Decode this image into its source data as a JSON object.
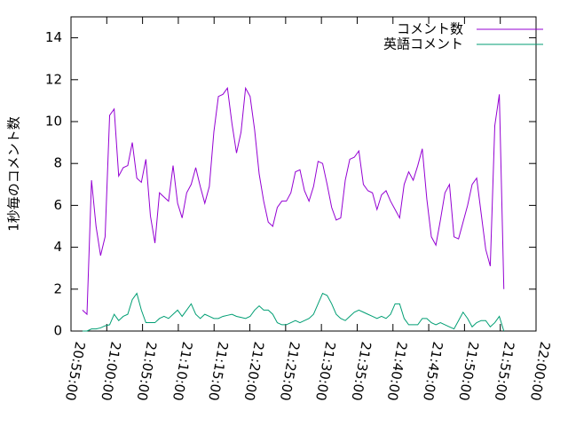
{
  "chart_data": {
    "type": "line",
    "y_label": "1秒毎のコメント数",
    "x": [
      "20:56:36",
      "20:57:14",
      "20:57:52",
      "20:58:30",
      "20:59:08",
      "20:59:46",
      "21:00:24",
      "21:01:02",
      "21:01:40",
      "21:02:18",
      "21:02:56",
      "21:03:34",
      "21:04:12",
      "21:04:50",
      "21:05:28",
      "21:06:06",
      "21:06:44",
      "21:07:22",
      "21:08:00",
      "21:08:38",
      "21:09:16",
      "21:09:54",
      "21:10:32",
      "21:11:10",
      "21:11:48",
      "21:12:26",
      "21:13:04",
      "21:13:42",
      "21:14:20",
      "21:14:58",
      "21:15:36",
      "21:16:14",
      "21:16:52",
      "21:17:30",
      "21:18:08",
      "21:18:46",
      "21:19:24",
      "21:20:02",
      "21:20:40",
      "21:21:18",
      "21:21:56",
      "21:22:34",
      "21:23:12",
      "21:23:50",
      "21:24:28",
      "21:25:06",
      "21:25:44",
      "21:26:22",
      "21:27:00",
      "21:27:38",
      "21:28:16",
      "21:28:54",
      "21:29:32",
      "21:30:10",
      "21:30:48",
      "21:31:26",
      "21:32:04",
      "21:32:42",
      "21:33:20",
      "21:33:58",
      "21:34:36",
      "21:35:14",
      "21:35:52",
      "21:36:30",
      "21:37:08",
      "21:37:46",
      "21:38:24",
      "21:39:02",
      "21:39:40",
      "21:40:18",
      "21:40:56",
      "21:41:34",
      "21:42:12",
      "21:42:50",
      "21:43:28",
      "21:44:06",
      "21:44:44",
      "21:45:22",
      "21:46:00",
      "21:46:38",
      "21:47:16",
      "21:47:54",
      "21:48:32",
      "21:49:10",
      "21:49:48",
      "21:50:26",
      "21:51:04",
      "21:51:42",
      "21:52:20",
      "21:52:58",
      "21:53:36",
      "21:54:14",
      "21:54:52",
      "21:55:30"
    ],
    "series": [
      {
        "name": "コメント数",
        "color": "#9400d3",
        "values": [
          1.0,
          0.8,
          7.2,
          5.0,
          3.6,
          4.5,
          10.3,
          10.6,
          7.4,
          7.8,
          7.9,
          9.0,
          7.3,
          7.1,
          8.2,
          5.5,
          4.2,
          6.6,
          6.4,
          6.2,
          7.9,
          6.1,
          5.4,
          6.6,
          7.0,
          7.8,
          6.9,
          6.1,
          6.9,
          9.5,
          11.2,
          11.3,
          11.6,
          9.9,
          8.5,
          9.5,
          11.6,
          11.2,
          9.6,
          7.5,
          6.2,
          5.2,
          5.0,
          5.9,
          6.2,
          6.2,
          6.6,
          7.6,
          7.7,
          6.7,
          6.2,
          6.9,
          8.1,
          8.0,
          7.0,
          5.9,
          5.3,
          5.4,
          7.2,
          8.2,
          8.3,
          8.6,
          7.0,
          6.7,
          6.6,
          5.8,
          6.5,
          6.7,
          6.2,
          5.8,
          5.4,
          7.0,
          7.6,
          7.2,
          7.9,
          8.7,
          6.3,
          4.5,
          4.1,
          5.3,
          6.6,
          7.0,
          4.5,
          4.4,
          5.2,
          6.0,
          7.0,
          7.3,
          5.6,
          3.9,
          3.1,
          9.8,
          11.3,
          2.0
        ]
      },
      {
        "name": "英語コメント",
        "color": "#009e73",
        "values": [
          0.0,
          0.0,
          0.1,
          0.1,
          0.15,
          0.25,
          0.3,
          0.8,
          0.5,
          0.7,
          0.8,
          1.5,
          1.8,
          1.0,
          0.4,
          0.4,
          0.4,
          0.6,
          0.7,
          0.6,
          0.8,
          1.0,
          0.7,
          1.0,
          1.3,
          0.8,
          0.6,
          0.8,
          0.7,
          0.6,
          0.6,
          0.7,
          0.75,
          0.8,
          0.7,
          0.65,
          0.6,
          0.7,
          1.0,
          1.2,
          1.0,
          1.0,
          0.8,
          0.4,
          0.3,
          0.3,
          0.4,
          0.5,
          0.4,
          0.5,
          0.6,
          0.8,
          1.3,
          1.8,
          1.7,
          1.3,
          0.8,
          0.6,
          0.5,
          0.7,
          0.9,
          1.0,
          0.9,
          0.8,
          0.7,
          0.6,
          0.7,
          0.6,
          0.8,
          1.3,
          1.3,
          0.6,
          0.3,
          0.3,
          0.3,
          0.6,
          0.6,
          0.4,
          0.3,
          0.4,
          0.3,
          0.2,
          0.1,
          0.5,
          0.9,
          0.6,
          0.2,
          0.4,
          0.5,
          0.5,
          0.2,
          0.4,
          0.7,
          0.0
        ]
      }
    ],
    "xlim": [
      "20:55:00",
      "22:00:00"
    ],
    "xticks": [
      "20:55:00",
      "21:00:00",
      "21:05:00",
      "21:10:00",
      "21:15:00",
      "21:20:00",
      "21:25:00",
      "21:30:00",
      "21:35:00",
      "21:40:00",
      "21:45:00",
      "21:50:00",
      "21:55:00",
      "22:00:00"
    ],
    "ylim": [
      0,
      15
    ],
    "yticks": [
      0,
      2,
      4,
      6,
      8,
      10,
      12,
      14
    ],
    "legend": "top-right"
  }
}
